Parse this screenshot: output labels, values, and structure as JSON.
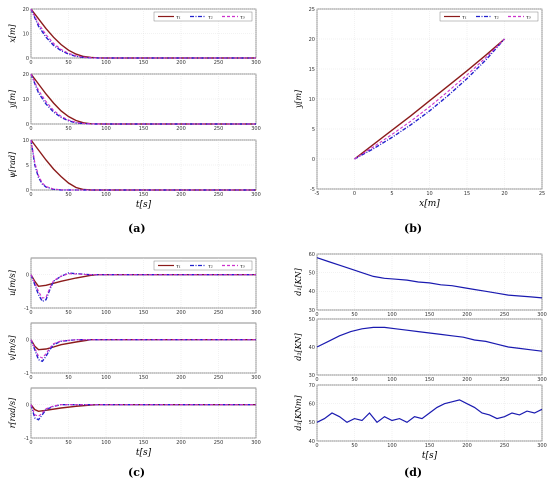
{
  "colors": {
    "tau1": "#8b1a1a",
    "tau2": "#2222cc",
    "tau3": "#cc33cc",
    "d_line": "#1a1ab0"
  },
  "panel_labels": {
    "a": "(a)",
    "b": "(b)",
    "c": "(c)",
    "d": "(d)"
  },
  "chart_data": [
    {
      "id": "a1",
      "type": "line",
      "ylabel": "x[m]",
      "xlabel": "",
      "xlim": [
        0,
        300
      ],
      "ylim": [
        0,
        20
      ],
      "xticks": [
        0,
        50,
        100,
        150,
        200,
        250,
        300
      ],
      "yticks": [
        0,
        10,
        20
      ],
      "legend": [
        "τ₁",
        "τ₂",
        "τ₃"
      ],
      "series": [
        {
          "name": "τ₁",
          "x": [
            0,
            10,
            20,
            30,
            40,
            50,
            60,
            70,
            80,
            90,
            100,
            300
          ],
          "y": [
            20,
            16,
            12,
            8.5,
            5.5,
            3.2,
            1.6,
            0.6,
            0.2,
            0.05,
            0,
            0
          ]
        },
        {
          "name": "τ₂",
          "x": [
            0,
            10,
            20,
            30,
            40,
            50,
            60,
            70,
            80,
            90,
            100,
            300
          ],
          "y": [
            20,
            13,
            8.5,
            5.2,
            3,
            1.6,
            0.7,
            0.25,
            0.05,
            0,
            0,
            0
          ]
        },
        {
          "name": "τ₃",
          "x": [
            0,
            10,
            20,
            30,
            40,
            50,
            60,
            70,
            80,
            90,
            100,
            300
          ],
          "y": [
            20,
            14,
            9.5,
            6,
            3.5,
            1.9,
            0.9,
            0.35,
            0.1,
            0,
            0,
            0
          ]
        }
      ]
    },
    {
      "id": "a2",
      "type": "line",
      "ylabel": "y[m]",
      "xlabel": "",
      "xlim": [
        0,
        300
      ],
      "ylim": [
        0,
        20
      ],
      "xticks": [
        0,
        50,
        100,
        150,
        200,
        250,
        300
      ],
      "yticks": [
        0,
        10,
        20
      ],
      "series": [
        {
          "name": "τ₁",
          "x": [
            0,
            10,
            20,
            30,
            40,
            50,
            60,
            70,
            80,
            100,
            300
          ],
          "y": [
            20,
            16,
            12,
            8.4,
            5.3,
            3,
            1.4,
            0.5,
            0.1,
            0,
            0
          ]
        },
        {
          "name": "τ₂",
          "x": [
            0,
            10,
            20,
            30,
            40,
            50,
            60,
            70,
            80,
            100,
            300
          ],
          "y": [
            20,
            12.5,
            8,
            4.8,
            2.7,
            1.3,
            0.5,
            0.15,
            0,
            0,
            0
          ]
        },
        {
          "name": "τ₃",
          "x": [
            0,
            10,
            20,
            30,
            40,
            50,
            60,
            70,
            80,
            100,
            300
          ],
          "y": [
            20,
            13.5,
            9,
            5.5,
            3.1,
            1.6,
            0.7,
            0.2,
            0.05,
            0,
            0
          ]
        }
      ]
    },
    {
      "id": "a3",
      "type": "line",
      "ylabel": "ψ[rad]",
      "xlabel": "t[s]",
      "xlim": [
        0,
        300
      ],
      "ylim": [
        0,
        10
      ],
      "xticks": [
        0,
        50,
        100,
        150,
        200,
        250,
        300
      ],
      "yticks": [
        0,
        5,
        10
      ],
      "series": [
        {
          "name": "τ₁",
          "x": [
            0,
            10,
            20,
            30,
            40,
            50,
            60,
            70,
            80,
            300
          ],
          "y": [
            10,
            8,
            6,
            4.2,
            2.7,
            1.4,
            0.5,
            0.1,
            0,
            0
          ]
        },
        {
          "name": "τ₂",
          "x": [
            0,
            5,
            10,
            15,
            20,
            30,
            40,
            50,
            300
          ],
          "y": [
            10,
            5,
            2.5,
            1.2,
            0.6,
            0.15,
            0,
            0,
            0
          ]
        },
        {
          "name": "τ₃",
          "x": [
            0,
            5,
            10,
            15,
            20,
            30,
            40,
            50,
            300
          ],
          "y": [
            10,
            5.5,
            2.9,
            1.4,
            0.7,
            0.2,
            0.05,
            0,
            0
          ]
        }
      ]
    },
    {
      "id": "b",
      "type": "line",
      "ylabel": "y[m]",
      "xlabel": "x[m]",
      "xlim": [
        -5,
        25
      ],
      "ylim": [
        -5,
        25
      ],
      "xticks": [
        -5,
        0,
        5,
        10,
        15,
        20,
        25
      ],
      "yticks": [
        -5,
        0,
        5,
        10,
        15,
        20,
        25
      ],
      "legend": [
        "τ₁",
        "τ₂",
        "τ₃"
      ],
      "series": [
        {
          "name": "τ₁",
          "x": [
            0,
            2.5,
            5,
            7.5,
            10,
            12.5,
            15,
            17.5,
            20
          ],
          "y": [
            0,
            2.4,
            4.8,
            7.2,
            9.7,
            12.2,
            14.7,
            17.3,
            20
          ]
        },
        {
          "name": "τ₂",
          "x": [
            0,
            2.5,
            5,
            7.5,
            10,
            12.5,
            15,
            17.5,
            20
          ],
          "y": [
            0,
            1.7,
            3.6,
            5.7,
            8,
            10.6,
            13.4,
            16.5,
            20
          ]
        },
        {
          "name": "τ₃",
          "x": [
            0,
            2.5,
            5,
            7.5,
            10,
            12.5,
            15,
            17.5,
            20
          ],
          "y": [
            0,
            2,
            4.1,
            6.3,
            8.7,
            11.3,
            14,
            16.9,
            20
          ]
        }
      ]
    },
    {
      "id": "c1",
      "type": "line",
      "ylabel": "u[m/s]",
      "xlabel": "",
      "xlim": [
        0,
        300
      ],
      "ylim": [
        -1,
        0.5
      ],
      "xticks": [
        0,
        50,
        100,
        150,
        200,
        250,
        300
      ],
      "yticks": [
        -1,
        0
      ],
      "legend": [
        "τ₁",
        "τ₂",
        "τ₃"
      ],
      "series": [
        {
          "name": "τ₁",
          "x": [
            0,
            5,
            10,
            20,
            30,
            40,
            60,
            80,
            90,
            300
          ],
          "y": [
            0,
            -0.2,
            -0.35,
            -0.32,
            -0.26,
            -0.2,
            -0.1,
            -0.02,
            0,
            0
          ]
        },
        {
          "name": "τ₂",
          "x": [
            0,
            5,
            10,
            15,
            20,
            25,
            30,
            40,
            50,
            60,
            80,
            300
          ],
          "y": [
            0,
            -0.3,
            -0.6,
            -0.8,
            -0.75,
            -0.45,
            -0.2,
            -0.05,
            0.05,
            0.03,
            0,
            0
          ]
        },
        {
          "name": "τ₃",
          "x": [
            0,
            5,
            10,
            15,
            20,
            25,
            30,
            40,
            50,
            60,
            80,
            300
          ],
          "y": [
            0,
            -0.25,
            -0.5,
            -0.7,
            -0.68,
            -0.4,
            -0.18,
            -0.05,
            0.03,
            0.02,
            0,
            0
          ]
        }
      ]
    },
    {
      "id": "c2",
      "type": "line",
      "ylabel": "v[m/s]",
      "xlabel": "",
      "xlim": [
        0,
        300
      ],
      "ylim": [
        -1,
        0.5
      ],
      "xticks": [
        0,
        50,
        100,
        150,
        200,
        250,
        300
      ],
      "yticks": [
        -1,
        0
      ],
      "series": [
        {
          "name": "τ₁",
          "x": [
            0,
            5,
            10,
            20,
            30,
            40,
            60,
            80,
            300
          ],
          "y": [
            0,
            -0.2,
            -0.3,
            -0.28,
            -0.22,
            -0.15,
            -0.07,
            0,
            0
          ]
        },
        {
          "name": "τ₂",
          "x": [
            0,
            5,
            10,
            15,
            20,
            25,
            30,
            40,
            60,
            80,
            300
          ],
          "y": [
            0,
            -0.3,
            -0.6,
            -0.65,
            -0.5,
            -0.3,
            -0.15,
            -0.05,
            0,
            0,
            0
          ]
        },
        {
          "name": "τ₃",
          "x": [
            0,
            5,
            10,
            15,
            20,
            25,
            30,
            40,
            60,
            80,
            300
          ],
          "y": [
            0,
            -0.25,
            -0.5,
            -0.55,
            -0.42,
            -0.25,
            -0.12,
            -0.04,
            0,
            0,
            0
          ]
        }
      ]
    },
    {
      "id": "c3",
      "type": "line",
      "ylabel": "r[rad/s]",
      "xlabel": "t[s]",
      "xlim": [
        0,
        300
      ],
      "ylim": [
        -1,
        0.5
      ],
      "xticks": [
        0,
        50,
        100,
        150,
        200,
        250,
        300
      ],
      "yticks": [
        -1,
        0
      ],
      "series": [
        {
          "name": "τ₁",
          "x": [
            0,
            5,
            10,
            20,
            40,
            60,
            80,
            90,
            300
          ],
          "y": [
            0,
            -0.15,
            -0.2,
            -0.17,
            -0.1,
            -0.05,
            -0.01,
            0,
            0
          ]
        },
        {
          "name": "τ₂",
          "x": [
            0,
            5,
            10,
            15,
            20,
            30,
            40,
            60,
            300
          ],
          "y": [
            0,
            -0.4,
            -0.45,
            -0.3,
            -0.15,
            -0.05,
            0,
            0,
            0
          ]
        },
        {
          "name": "τ₃",
          "x": [
            0,
            5,
            10,
            15,
            20,
            30,
            40,
            60,
            300
          ],
          "y": [
            0,
            -0.3,
            -0.35,
            -0.25,
            -0.12,
            -0.04,
            0,
            0,
            0
          ]
        }
      ]
    },
    {
      "id": "d1",
      "type": "line",
      "ylabel": "d₁[KN]",
      "xlabel": "",
      "xlim": [
        0,
        300
      ],
      "ylim": [
        30,
        60
      ],
      "xticks": [
        0,
        50,
        100,
        150,
        200,
        250,
        300
      ],
      "yticks": [
        30,
        40,
        50,
        60
      ],
      "series": [
        {
          "name": "d₁",
          "x": [
            0,
            15,
            30,
            45,
            60,
            75,
            90,
            105,
            120,
            135,
            150,
            165,
            180,
            195,
            210,
            225,
            240,
            255,
            270,
            285,
            300
          ],
          "y": [
            58,
            56,
            54,
            52,
            50,
            48,
            47,
            46.5,
            46,
            45,
            44.5,
            43.5,
            43,
            42,
            41,
            40,
            39,
            38,
            37.5,
            37,
            36.5
          ]
        }
      ]
    },
    {
      "id": "d2",
      "type": "line",
      "ylabel": "d₂[KN]",
      "xlabel": "",
      "xlim": [
        0,
        300
      ],
      "ylim": [
        30,
        50
      ],
      "xticks": [
        0,
        50,
        100,
        150,
        200,
        250,
        300
      ],
      "yticks": [
        30,
        40,
        50
      ],
      "series": [
        {
          "name": "d₂",
          "x": [
            0,
            15,
            30,
            45,
            60,
            75,
            90,
            105,
            120,
            135,
            150,
            165,
            180,
            195,
            210,
            225,
            240,
            255,
            270,
            285,
            300
          ],
          "y": [
            40,
            42,
            44,
            45.5,
            46.5,
            47,
            47,
            46.5,
            46,
            45.5,
            45,
            44.5,
            44,
            43.5,
            42.5,
            42,
            41,
            40,
            39.5,
            39,
            38.5
          ]
        }
      ]
    },
    {
      "id": "d3",
      "type": "line",
      "ylabel": "d₃[KNm]",
      "xlabel": "t[s]",
      "xlim": [
        0,
        300
      ],
      "ylim": [
        40,
        70
      ],
      "xticks": [
        0,
        50,
        100,
        150,
        200,
        250,
        300
      ],
      "yticks": [
        40,
        50,
        60,
        70
      ],
      "series": [
        {
          "name": "d₃",
          "x": [
            0,
            10,
            20,
            30,
            40,
            50,
            60,
            70,
            80,
            90,
            100,
            110,
            120,
            130,
            140,
            150,
            160,
            170,
            180,
            190,
            200,
            210,
            220,
            230,
            240,
            250,
            260,
            270,
            280,
            290,
            300
          ],
          "y": [
            50,
            52,
            55,
            53,
            50,
            52,
            51,
            55,
            50,
            53,
            51,
            52,
            50,
            53,
            52,
            55,
            58,
            60,
            61,
            62,
            60,
            58,
            55,
            54,
            52,
            53,
            55,
            54,
            56,
            55,
            57
          ]
        }
      ]
    }
  ]
}
